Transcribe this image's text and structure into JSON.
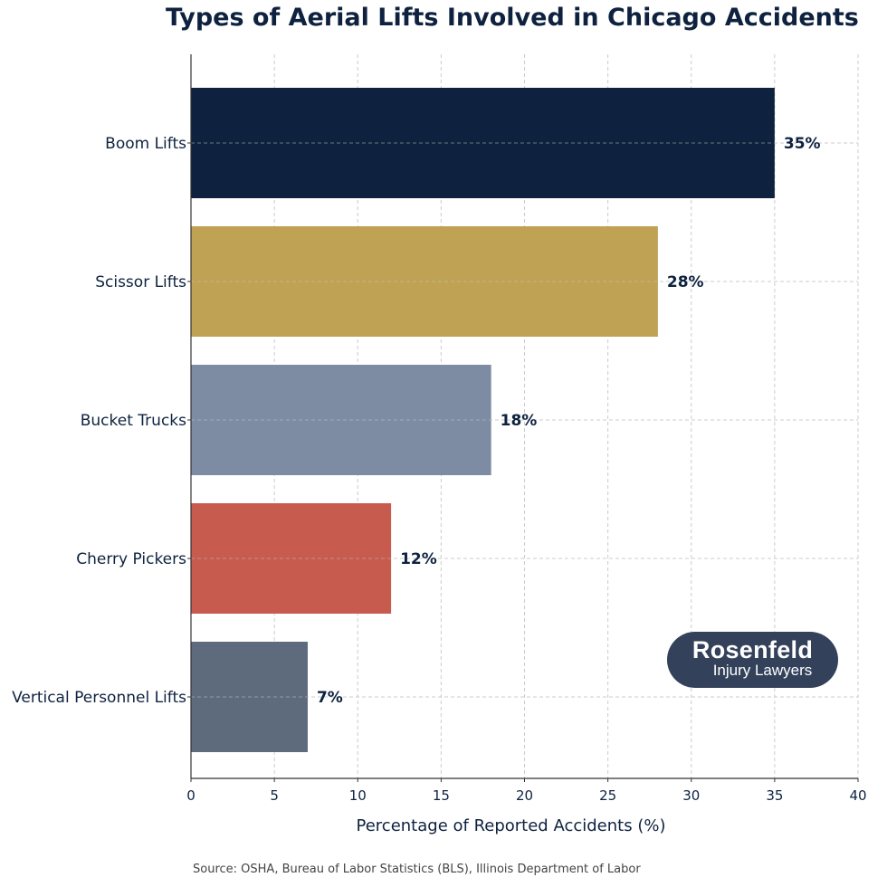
{
  "chart_data": {
    "type": "bar",
    "orientation": "horizontal",
    "title": "Types of Aerial Lifts Involved in Chicago Accidents",
    "xlabel": "Percentage of Reported Accidents (%)",
    "ylabel": "",
    "xlim": [
      0,
      40
    ],
    "xticks": [
      0,
      5,
      10,
      15,
      20,
      25,
      30,
      35,
      40
    ],
    "grid": true,
    "categories": [
      "Boom Lifts",
      "Scissor Lifts",
      "Bucket Trucks",
      "Cherry Pickers",
      "Vertical Personnel Lifts"
    ],
    "values": [
      35,
      28,
      18,
      12,
      7
    ],
    "data_labels": [
      "35%",
      "28%",
      "18%",
      "12%",
      "7%"
    ],
    "colors": [
      "#0e223f",
      "#bfa253",
      "#7d8ca3",
      "#c75b4e",
      "#5e6b7d"
    ]
  },
  "source": "Source: OSHA, Bureau of Labor Statistics (BLS), Illinois Department of Labor",
  "logo": {
    "line1": "Rosenfeld",
    "line2": "Injury Lawyers",
    "color": "#33415a"
  }
}
